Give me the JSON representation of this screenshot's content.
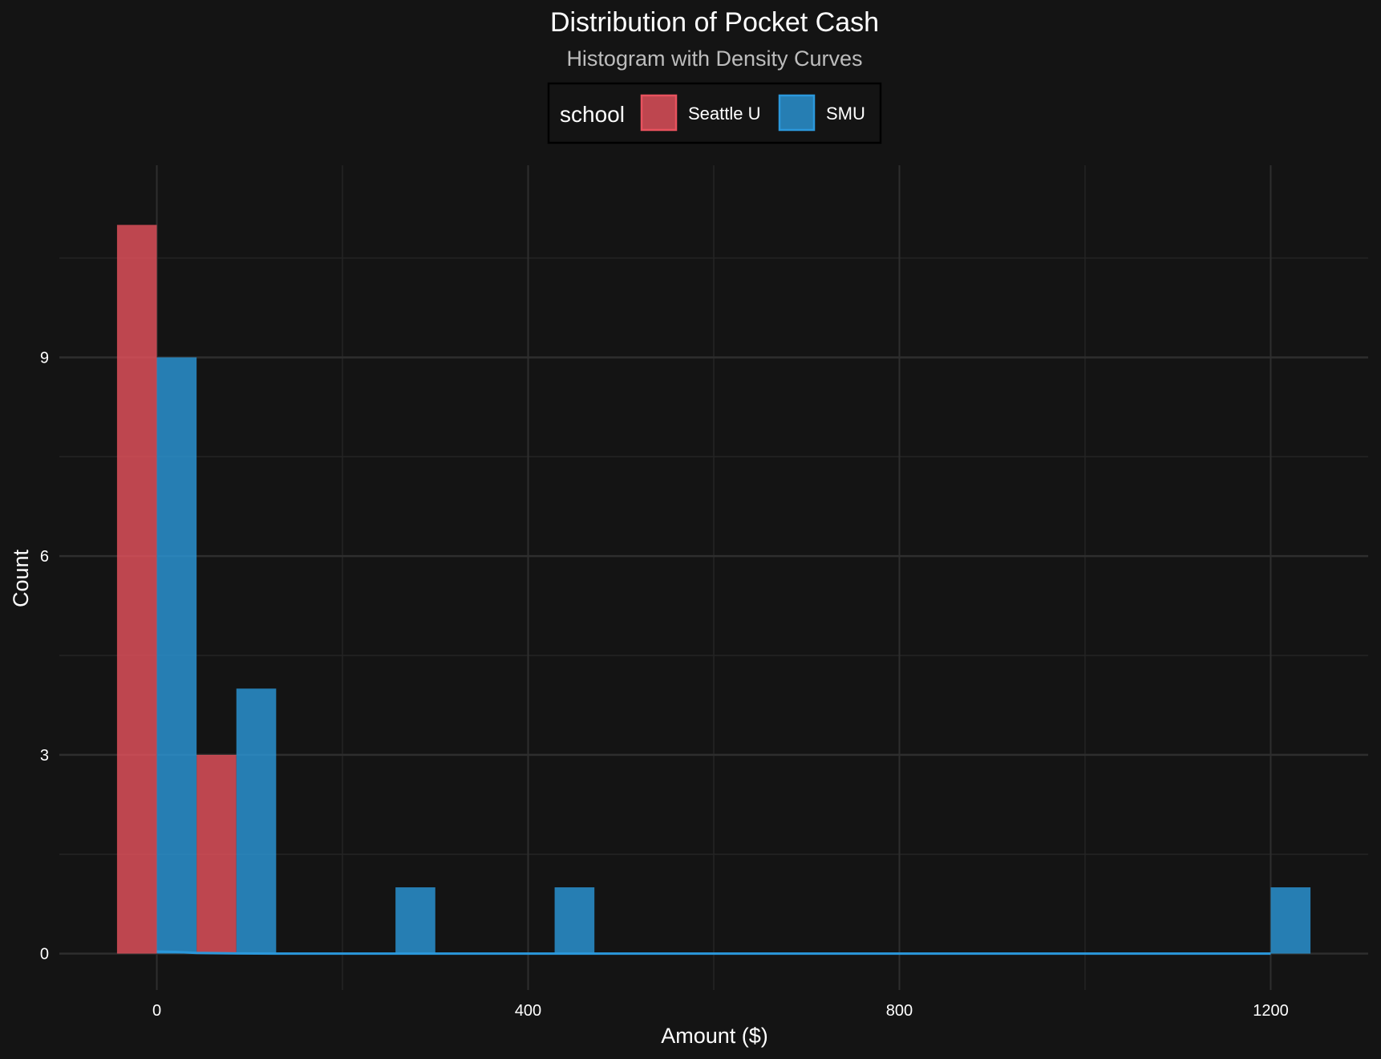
{
  "chart_data": {
    "type": "bar",
    "title": "Distribution of Pocket Cash",
    "subtitle": "Histogram with Density Curves",
    "xlabel": "Amount ($)",
    "ylabel": "Count",
    "xlim": [
      -105,
      1305
    ],
    "ylim": [
      -0.55,
      11.9
    ],
    "x_ticks": [
      0,
      400,
      800,
      1200
    ],
    "y_ticks": [
      0,
      3,
      6,
      9
    ],
    "grid": true,
    "legend": {
      "title": "school",
      "placement": "top-center"
    },
    "bin_width": 42.86,
    "series": [
      {
        "name": "Seattle U",
        "color": "#E8525E",
        "bins": [
          {
            "x0": -42.86,
            "x1": 0,
            "count": 11
          },
          {
            "x0": 42.86,
            "x1": 85.71,
            "count": 3
          }
        ]
      },
      {
        "name": "SMU",
        "color": "#2B98DB",
        "bins": [
          {
            "x0": 0,
            "x1": 42.86,
            "count": 9
          },
          {
            "x0": 85.71,
            "x1": 128.57,
            "count": 4
          },
          {
            "x0": 257.14,
            "x1": 300,
            "count": 1
          },
          {
            "x0": 428.57,
            "x1": 471.43,
            "count": 1
          },
          {
            "x0": 1200,
            "x1": 1242.86,
            "count": 1
          }
        ],
        "density_curve": {
          "x": [
            0,
            20,
            42.86,
            85.71,
            128.57,
            300,
            600,
            900,
            1200
          ],
          "y": [
            0.03,
            0.025,
            0.01,
            0.003,
            0,
            0,
            0,
            0,
            0
          ]
        }
      }
    ]
  }
}
